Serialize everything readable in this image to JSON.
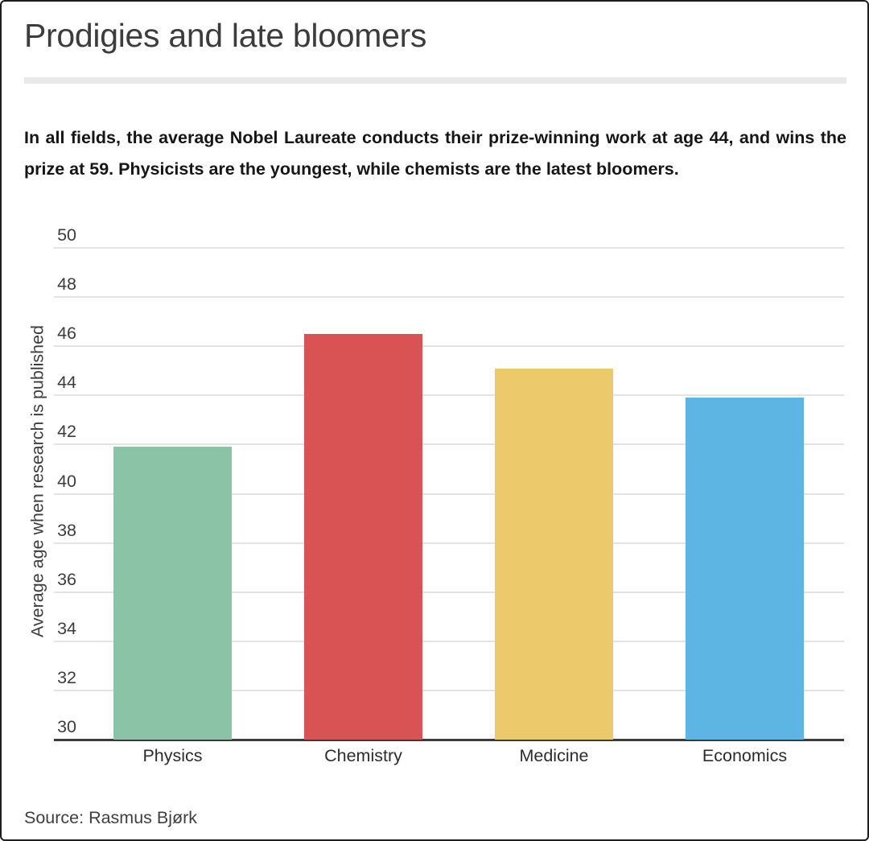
{
  "header": {
    "title": "Prodigies and late bloomers"
  },
  "description": "In all fields, the average Nobel Laureate conducts their prize-winning work at age 44, and wins the prize at 59. Physicists are the youngest, while chemists are the latest bloomers.",
  "chart_data": {
    "type": "bar",
    "title": "Prodigies and late bloomers",
    "categories": [
      "Physics",
      "Chemistry",
      "Medicine",
      "Economics"
    ],
    "values": [
      41.9,
      46.5,
      45.1,
      43.9
    ],
    "bar_colors": [
      "#8BC3A6",
      "#D95355",
      "#ECCA6B",
      "#5CB5E2"
    ],
    "xlabel": "",
    "ylabel": "Average age when research is published",
    "ylim": [
      30,
      50
    ],
    "yticks": [
      30,
      32,
      34,
      36,
      38,
      40,
      42,
      44,
      46,
      48,
      50
    ],
    "grid": true,
    "legend": false
  },
  "source": {
    "text": "Source: Rasmus Bjørk"
  },
  "colors": {
    "title_text": "#3c3c3c",
    "body_text": "#161616",
    "axis_text": "#3d3d3d",
    "gridline": "#e3e3e3",
    "baseline": "#3b3b3b",
    "divider": "#e9e9e9",
    "background": "#ffffff"
  }
}
